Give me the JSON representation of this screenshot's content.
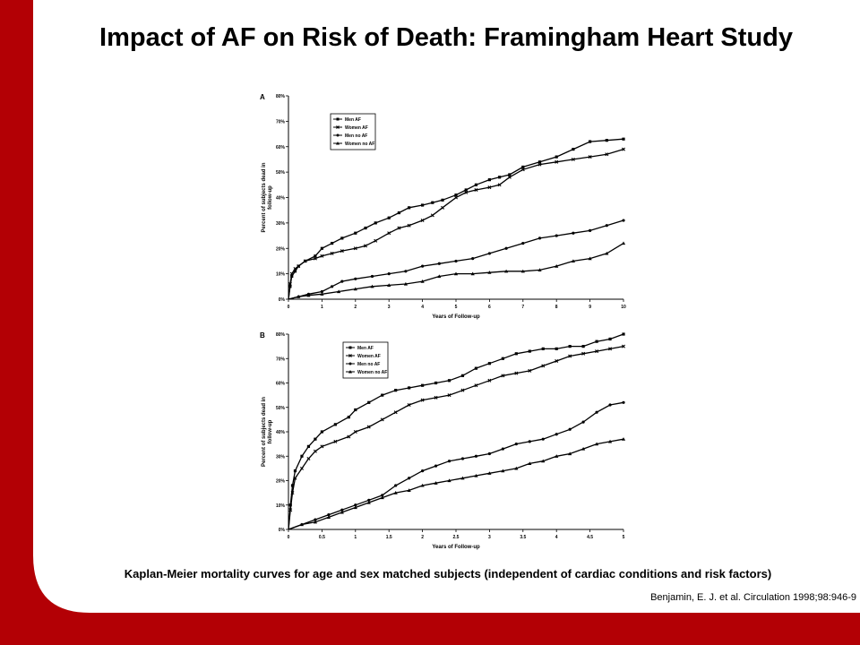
{
  "slide": {
    "title": "Impact of AF on Risk of Death: Framingham Heart Study",
    "caption": "Kaplan-Meier mortality curves for age and sex matched subjects (independent of cardiac conditions and risk factors)",
    "citation": "Benjamin, E. J. et al. Circulation 1998;98:946-9",
    "accent_color": "#b30005"
  },
  "chart_data": [
    {
      "type": "line",
      "panel_label": "A",
      "xlabel": "Years of Follow-up",
      "ylabel": "Percent of subjects dead in follow-up",
      "xlim": [
        0,
        10
      ],
      "ylim": [
        0,
        80
      ],
      "xticks": [
        "0",
        "1",
        "2",
        "3",
        "4",
        "5",
        "6",
        "7",
        "8",
        "9",
        "10"
      ],
      "xtick_values": [
        0,
        1,
        2,
        3,
        4,
        5,
        6,
        7,
        8,
        9,
        10
      ],
      "yticks": [
        "0%",
        "10%",
        "20%",
        "30%",
        "40%",
        "50%",
        "60%",
        "70%",
        "80%"
      ],
      "ytick_values": [
        0,
        10,
        20,
        30,
        40,
        50,
        60,
        70,
        80
      ],
      "grid": false,
      "legend_position": "top-left",
      "series": [
        {
          "name": "Men AF",
          "marker": "square",
          "x": [
            0,
            0.05,
            0.1,
            0.2,
            0.3,
            0.5,
            0.8,
            1,
            1.3,
            1.6,
            2,
            2.3,
            2.6,
            3,
            3.3,
            3.6,
            4,
            4.3,
            4.6,
            5,
            5.3,
            5.6,
            6,
            6.3,
            6.6,
            7,
            7.5,
            8,
            8.5,
            9,
            9.5,
            10
          ],
          "y": [
            0,
            5,
            9,
            11,
            13,
            15,
            17,
            20,
            22,
            24,
            26,
            28,
            30,
            32,
            34,
            36,
            37,
            38,
            39,
            41,
            43,
            45,
            47,
            48,
            49,
            52,
            54,
            56,
            59,
            62,
            62.5,
            63
          ]
        },
        {
          "name": "Women AF",
          "marker": "x",
          "x": [
            0,
            0.05,
            0.1,
            0.2,
            0.3,
            0.5,
            0.8,
            1,
            1.3,
            1.6,
            2,
            2.3,
            2.6,
            3,
            3.3,
            3.6,
            4,
            4.3,
            4.6,
            5,
            5.3,
            5.6,
            6,
            6.3,
            6.6,
            7,
            7.5,
            8,
            8.5,
            9,
            9.5,
            10
          ],
          "y": [
            0,
            6,
            10,
            12,
            13,
            15,
            16,
            17,
            18,
            19,
            20,
            21,
            23,
            26,
            28,
            29,
            31,
            33,
            36,
            40,
            42,
            43,
            44,
            45,
            48,
            51,
            53,
            54,
            55,
            56,
            57,
            59
          ]
        },
        {
          "name": "Men no AF",
          "marker": "circle",
          "x": [
            0,
            0.3,
            0.6,
            1,
            1.3,
            1.6,
            2,
            2.5,
            3,
            3.5,
            4,
            4.5,
            5,
            5.5,
            6,
            6.5,
            7,
            7.5,
            8,
            8.5,
            9,
            9.5,
            10
          ],
          "y": [
            0,
            1,
            2,
            3,
            5,
            7,
            8,
            9,
            10,
            11,
            13,
            14,
            15,
            16,
            18,
            20,
            22,
            24,
            25,
            26,
            27,
            29,
            31
          ]
        },
        {
          "name": "Women no AF",
          "marker": "triangle",
          "x": [
            0,
            0.3,
            0.6,
            1,
            1.5,
            2,
            2.5,
            3,
            3.5,
            4,
            4.5,
            5,
            5.5,
            6,
            6.5,
            7,
            7.5,
            8,
            8.5,
            9,
            9.5,
            10
          ],
          "y": [
            0,
            1,
            1.5,
            2,
            3,
            4,
            5,
            5.5,
            6,
            7,
            9,
            10,
            10,
            10.5,
            11,
            11,
            11.5,
            13,
            15,
            16,
            18,
            22
          ]
        }
      ]
    },
    {
      "type": "line",
      "panel_label": "B",
      "xlabel": "Years of Follow-up",
      "ylabel": "Percent of subjects dead in follow-up",
      "xlim": [
        0,
        5
      ],
      "ylim": [
        0,
        80
      ],
      "xticks": [
        "0",
        "0.5",
        "1",
        "1.5",
        "2",
        "2.5",
        "3",
        "3.5",
        "4",
        "4.5",
        "5"
      ],
      "xtick_values": [
        0,
        0.5,
        1,
        1.5,
        2,
        2.5,
        3,
        3.5,
        4,
        4.5,
        5
      ],
      "yticks": [
        "0%",
        "10%",
        "20%",
        "30%",
        "40%",
        "50%",
        "60%",
        "70%",
        "80%"
      ],
      "ytick_values": [
        0,
        10,
        20,
        30,
        40,
        50,
        60,
        70,
        80
      ],
      "grid": false,
      "legend_position": "top-left",
      "series": [
        {
          "name": "Men AF",
          "marker": "square",
          "x": [
            0,
            0.03,
            0.06,
            0.1,
            0.2,
            0.3,
            0.4,
            0.5,
            0.7,
            0.9,
            1,
            1.2,
            1.4,
            1.6,
            1.8,
            2,
            2.2,
            2.4,
            2.6,
            2.8,
            3,
            3.2,
            3.4,
            3.6,
            3.8,
            4,
            4.2,
            4.4,
            4.6,
            4.8,
            5
          ],
          "y": [
            0,
            10,
            18,
            24,
            30,
            34,
            37,
            40,
            43,
            46,
            49,
            52,
            55,
            57,
            58,
            59,
            60,
            61,
            63,
            66,
            68,
            70,
            72,
            73,
            74,
            74,
            75,
            75,
            77,
            78,
            80
          ]
        },
        {
          "name": "Women AF",
          "marker": "x",
          "x": [
            0,
            0.03,
            0.06,
            0.1,
            0.2,
            0.3,
            0.4,
            0.5,
            0.7,
            0.9,
            1,
            1.2,
            1.4,
            1.6,
            1.8,
            2,
            2.2,
            2.4,
            2.6,
            2.8,
            3,
            3.2,
            3.4,
            3.6,
            3.8,
            4,
            4.2,
            4.4,
            4.6,
            4.8,
            5
          ],
          "y": [
            0,
            8,
            15,
            21,
            25,
            29,
            32,
            34,
            36,
            38,
            40,
            42,
            45,
            48,
            51,
            53,
            54,
            55,
            57,
            59,
            61,
            63,
            64,
            65,
            67,
            69,
            71,
            72,
            73,
            74,
            75
          ]
        },
        {
          "name": "Men no AF",
          "marker": "circle",
          "x": [
            0,
            0.2,
            0.4,
            0.6,
            0.8,
            1,
            1.2,
            1.4,
            1.6,
            1.8,
            2,
            2.2,
            2.4,
            2.6,
            2.8,
            3,
            3.2,
            3.4,
            3.6,
            3.8,
            4,
            4.2,
            4.4,
            4.6,
            4.8,
            5
          ],
          "y": [
            0,
            2,
            4,
            6,
            8,
            10,
            12,
            14,
            18,
            21,
            24,
            26,
            28,
            29,
            30,
            31,
            33,
            35,
            36,
            37,
            39,
            41,
            44,
            48,
            51,
            52
          ]
        },
        {
          "name": "Women no AF",
          "marker": "triangle",
          "x": [
            0,
            0.2,
            0.4,
            0.6,
            0.8,
            1,
            1.2,
            1.4,
            1.6,
            1.8,
            2,
            2.2,
            2.4,
            2.6,
            2.8,
            3,
            3.2,
            3.4,
            3.6,
            3.8,
            4,
            4.2,
            4.4,
            4.6,
            4.8,
            5
          ],
          "y": [
            0,
            2,
            3,
            5,
            7,
            9,
            11,
            13,
            15,
            16,
            18,
            19,
            20,
            21,
            22,
            23,
            24,
            25,
            27,
            28,
            30,
            31,
            33,
            35,
            36,
            37
          ]
        }
      ]
    }
  ]
}
